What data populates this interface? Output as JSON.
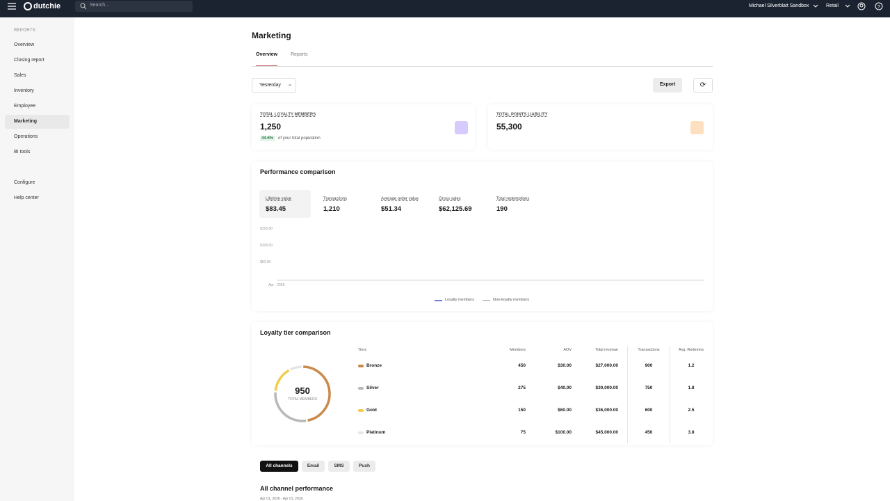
{
  "topbar": {
    "brand": "dutchie",
    "search_placeholder": "Search...",
    "location": "Michael Silverblatt Sandbox",
    "mode": "Retail"
  },
  "sidebar": {
    "section": "REPORTS",
    "items": [
      "Overview",
      "Closing report",
      "Sales",
      "Inventory",
      "Employee",
      "Marketing",
      "Operations",
      "BI tools"
    ],
    "active_index": 5,
    "footer_items": [
      "Configure",
      "Help center"
    ]
  },
  "page": {
    "title": "Marketing",
    "tabs": [
      "Overview",
      "Reports"
    ],
    "active_tab": 0,
    "date_filter": "Yesterday",
    "export": "Export"
  },
  "cards": [
    {
      "label": "TOTAL LOYALTY MEMBERS",
      "value": "1,250",
      "pct": "44.6%",
      "note": "of your total population",
      "icon_color": "#a78bfa"
    },
    {
      "label": "TOTAL POINTS LIABILITY",
      "value": "55,300",
      "icon_color": "#fdba74"
    }
  ],
  "performance": {
    "title": "Performance comparison",
    "metrics": [
      {
        "label": "Lifetime value",
        "value": "$83.45"
      },
      {
        "label": "Transactions",
        "value": "1,210"
      },
      {
        "label": "Average order value",
        "value": "$51.34"
      },
      {
        "label": "Gross sales",
        "value": "$62,125.69"
      },
      {
        "label": "Total redemptions",
        "value": "190"
      }
    ],
    "active_metric": 0,
    "yticks": [
      "$150.00",
      "$100.00",
      "$50.00"
    ],
    "x_label": "Apr - 2026",
    "legend": [
      {
        "name": "Loyalty members",
        "color": "#6b7fd7"
      },
      {
        "name": "Non-loyalty members",
        "color": "#9aa0a6"
      }
    ]
  },
  "tiers": {
    "title": "Loyalty tier comparison",
    "total": 950,
    "total_label": "TOTAL MEMBERS",
    "columns": [
      "Tiers",
      "Members",
      "AOV",
      "Total revenue",
      "Transactions",
      "Avg. Redeems"
    ],
    "rows": [
      {
        "name": "Bronze",
        "color": "#c98a4b",
        "members": 450,
        "aov": "$30.00",
        "revenue": "$27,000.00",
        "transactions": "900",
        "redeems": "1.2"
      },
      {
        "name": "Silver",
        "color": "#b8b8b8",
        "members": 275,
        "aov": "$40.00",
        "revenue": "$30,000.00",
        "transactions": "750",
        "redeems": "1.8"
      },
      {
        "name": "Gold",
        "color": "#f2cc4b",
        "members": 150,
        "aov": "$60.00",
        "revenue": "$36,000.00",
        "transactions": "600",
        "redeems": "2.5"
      },
      {
        "name": "Platinum",
        "color": "#e6e6e6",
        "members": 75,
        "aov": "$100.00",
        "revenue": "$45,000.00",
        "transactions": "450",
        "redeems": "3.8"
      }
    ]
  },
  "channels": {
    "tabs": [
      "All channels",
      "Email",
      "SMS",
      "Push"
    ],
    "active_tab": 0,
    "title": "All channel performance",
    "date_range": "Apr 01, 2026 - Apr 01, 2026"
  }
}
